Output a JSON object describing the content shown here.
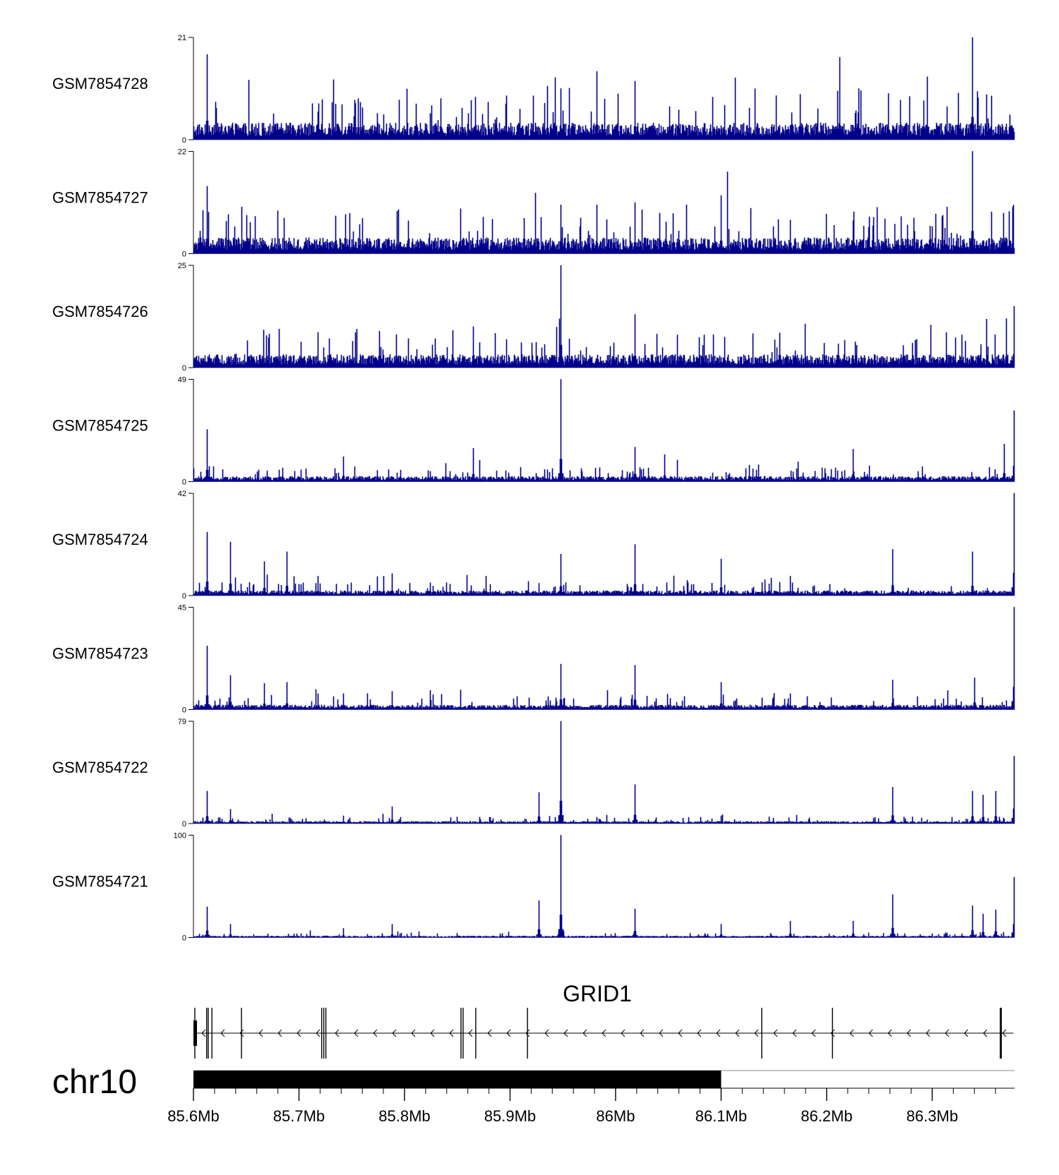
{
  "colors": {
    "signal": "#00008B",
    "axis": "#000000",
    "gene": "#000000"
  },
  "chart_data": {
    "type": "area",
    "xlabel": "",
    "ylabel": "",
    "xlim": [
      85.6,
      86.378
    ],
    "tracks": [
      {
        "name": "GSM7854728",
        "ymax": 21,
        "ymin_label": "0",
        "ymax_label": "21",
        "baseline": 3.0,
        "noise": 1.6,
        "peaks": [
          [
            85.613,
            17.5
          ],
          [
            85.935,
            11
          ],
          [
            85.948,
            10.5
          ],
          [
            85.982,
            14
          ],
          [
            86.018,
            12
          ],
          [
            86.21,
            10
          ],
          [
            86.23,
            10.5
          ],
          [
            86.258,
            9.5
          ],
          [
            86.338,
            21
          ],
          [
            86.356,
            9
          ]
        ]
      },
      {
        "name": "GSM7854727",
        "ymax": 22,
        "ymin_label": "0",
        "ymax_label": "22",
        "baseline": 3.0,
        "noise": 1.6,
        "peaks": [
          [
            85.613,
            14.5
          ],
          [
            85.948,
            10.5
          ],
          [
            85.982,
            10.5
          ],
          [
            86.018,
            11
          ],
          [
            86.1,
            12.5
          ],
          [
            86.27,
            8
          ],
          [
            86.338,
            22
          ],
          [
            86.356,
            9
          ],
          [
            86.376,
            10
          ]
        ]
      },
      {
        "name": "GSM7854726",
        "ymax": 25,
        "ymin_label": "0",
        "ymax_label": "25",
        "baseline": 2.8,
        "noise": 1.5,
        "peaks": [
          [
            85.865,
            10
          ],
          [
            85.948,
            25
          ],
          [
            86.018,
            13
          ],
          [
            86.155,
            8.5
          ],
          [
            86.328,
            8
          ],
          [
            86.37,
            12
          ],
          [
            86.377,
            15
          ]
        ]
      },
      {
        "name": "GSM7854725",
        "ymax": 49,
        "ymin_label": "0",
        "ymax_label": "49",
        "baseline": 2.2,
        "noise": 1.2,
        "peaks": [
          [
            85.613,
            25
          ],
          [
            85.742,
            12
          ],
          [
            85.865,
            16
          ],
          [
            85.948,
            49
          ],
          [
            86.018,
            16.5
          ],
          [
            86.046,
            13
          ],
          [
            86.225,
            15.5
          ],
          [
            86.368,
            18
          ],
          [
            86.377,
            34
          ]
        ]
      },
      {
        "name": "GSM7854724",
        "ymax": 42,
        "ymin_label": "0",
        "ymax_label": "42",
        "baseline": 1.8,
        "noise": 1.0,
        "peaks": [
          [
            85.613,
            26
          ],
          [
            85.635,
            22
          ],
          [
            85.667,
            14
          ],
          [
            85.688,
            18
          ],
          [
            85.718,
            8
          ],
          [
            85.78,
            8
          ],
          [
            85.788,
            9
          ],
          [
            85.877,
            8
          ],
          [
            85.948,
            17
          ],
          [
            86.018,
            21
          ],
          [
            86.1,
            15
          ],
          [
            86.165,
            8
          ],
          [
            86.262,
            19
          ],
          [
            86.338,
            18
          ],
          [
            86.377,
            42
          ]
        ]
      },
      {
        "name": "GSM7854723",
        "ymax": 45,
        "ymin_label": "0",
        "ymax_label": "45",
        "baseline": 1.8,
        "noise": 1.0,
        "peaks": [
          [
            85.613,
            28
          ],
          [
            85.635,
            15
          ],
          [
            85.667,
            11.5
          ],
          [
            85.688,
            12
          ],
          [
            85.718,
            7
          ],
          [
            85.742,
            7
          ],
          [
            85.788,
            8
          ],
          [
            85.948,
            20
          ],
          [
            86.018,
            19.5
          ],
          [
            86.1,
            12
          ],
          [
            86.165,
            7
          ],
          [
            86.262,
            13
          ],
          [
            86.34,
            14
          ],
          [
            86.377,
            45
          ]
        ]
      },
      {
        "name": "GSM7854722",
        "ymax": 79,
        "ymin_label": "0",
        "ymax_label": "79",
        "baseline": 1.5,
        "noise": 0.9,
        "peaks": [
          [
            85.613,
            25
          ],
          [
            85.635,
            11
          ],
          [
            85.742,
            6
          ],
          [
            85.788,
            13
          ],
          [
            85.927,
            24
          ],
          [
            85.948,
            79
          ],
          [
            86.018,
            30
          ],
          [
            86.1,
            6
          ],
          [
            86.262,
            28
          ],
          [
            86.338,
            25
          ],
          [
            86.348,
            22
          ],
          [
            86.36,
            25
          ],
          [
            86.377,
            52
          ]
        ]
      },
      {
        "name": "GSM7854721",
        "ymax": 100,
        "ymin_label": "0",
        "ymax_label": "100",
        "baseline": 1.4,
        "noise": 0.8,
        "peaks": [
          [
            85.613,
            30
          ],
          [
            85.635,
            13
          ],
          [
            85.742,
            9
          ],
          [
            85.788,
            13
          ],
          [
            85.927,
            36
          ],
          [
            85.948,
            100
          ],
          [
            86.018,
            28
          ],
          [
            86.1,
            13
          ],
          [
            86.165,
            16
          ],
          [
            86.225,
            16
          ],
          [
            86.262,
            42
          ],
          [
            86.338,
            31
          ],
          [
            86.348,
            23
          ],
          [
            86.36,
            27
          ],
          [
            86.377,
            59
          ]
        ]
      }
    ],
    "gene": {
      "name": "GRID1",
      "strand": "-",
      "start": 85.6,
      "end": 86.377,
      "exons": [
        85.6013,
        85.6125,
        85.614,
        85.6175,
        85.6455,
        85.7215,
        85.7235,
        85.7255,
        85.8535,
        85.8555,
        85.8675,
        85.9165,
        86.1385,
        86.2055,
        86.3645,
        86.3655
      ]
    },
    "ideogram": {
      "chrom": "chr10",
      "region_start": 85.6,
      "region_end": 86.1,
      "axis_start": 85.6,
      "axis_end": 86.378,
      "major_ticks": [
        85.6,
        85.7,
        85.8,
        85.9,
        86.0,
        86.1,
        86.2,
        86.3
      ],
      "major_labels": [
        "85.6Mb",
        "85.7Mb",
        "85.8Mb",
        "85.9Mb",
        "86Mb",
        "86.1Mb",
        "86.2Mb",
        "86.3Mb"
      ],
      "minor_step": 0.02
    }
  }
}
